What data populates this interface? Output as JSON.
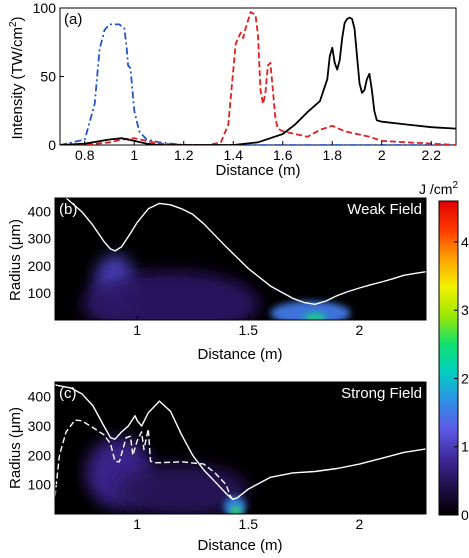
{
  "figure": {
    "colorbar": {
      "unit_label": "J /cm",
      "unit_sup": "2",
      "min": 0,
      "max": 4.6,
      "ticks": [
        "0",
        "1",
        "2",
        "3",
        "4"
      ],
      "tick_values": [
        0,
        1,
        2,
        3,
        4
      ],
      "colormap": [
        "#000000",
        "#20104a",
        "#3f2a9a",
        "#5c5ae6",
        "#2f8fe6",
        "#00cfc0",
        "#10e070",
        "#9ee800",
        "#f2f200",
        "#ffa000",
        "#ff3a00",
        "#e00000"
      ]
    }
  },
  "chart_data": [
    {
      "type": "line",
      "panel_label": "(a)",
      "xlabel": "Distance (m)",
      "ylabel": "Intensity (TW/cm",
      "ylabel_sup": "2",
      "ylabel_tail": ")",
      "xlim": [
        0.7,
        2.3
      ],
      "ylim": [
        0,
        100
      ],
      "x_ticks": [
        0.8,
        1,
        1.2,
        1.4,
        1.6,
        1.8,
        2,
        2.2
      ],
      "x_tick_labels": [
        "0.8",
        "1",
        "1.2",
        "1.4",
        "1.6",
        "1.8",
        "2",
        "2.2"
      ],
      "y_ticks": [
        0,
        50,
        100
      ],
      "y_tick_labels": [
        "0",
        "50",
        "100"
      ],
      "series": [
        {
          "color": "#2255cc",
          "style": "dashdot",
          "x": [
            0.7,
            0.8,
            0.84,
            0.86,
            0.88,
            0.9,
            0.94,
            0.96,
            0.97,
            0.975,
            0.985,
            0.99,
            1.0,
            1.02,
            1.05,
            1.1,
            1.15,
            1.2,
            1.3,
            2.3
          ],
          "y": [
            0,
            4,
            30,
            70,
            84,
            88,
            88,
            85,
            70,
            58,
            56,
            45,
            25,
            10,
            4,
            2,
            1,
            0,
            0,
            0
          ]
        },
        {
          "color": "#e02020",
          "style": "dashed",
          "x": [
            0.7,
            0.82,
            0.9,
            0.95,
            1.0,
            1.05,
            1.1,
            1.2,
            1.3,
            1.35,
            1.38,
            1.41,
            1.43,
            1.44,
            1.45,
            1.47,
            1.49,
            1.5,
            1.51,
            1.52,
            1.53,
            1.54,
            1.55,
            1.56,
            1.57,
            1.58,
            1.6,
            1.65,
            1.7,
            1.75,
            1.8,
            1.85,
            1.9,
            1.95,
            2.0,
            2.1,
            2.2,
            2.3
          ],
          "y": [
            0,
            0.5,
            2,
            4,
            5,
            3,
            1,
            0,
            0,
            2,
            15,
            74,
            82,
            78,
            85,
            97,
            95,
            80,
            40,
            30,
            38,
            58,
            60,
            40,
            20,
            12,
            10,
            8,
            6,
            11,
            14,
            10,
            8,
            6,
            3,
            2,
            1,
            0
          ]
        },
        {
          "color": "#000000",
          "style": "solid",
          "x": [
            0.7,
            0.8,
            0.9,
            0.95,
            1.0,
            1.05,
            1.1,
            1.2,
            1.4,
            1.5,
            1.6,
            1.65,
            1.7,
            1.75,
            1.78,
            1.79,
            1.8,
            1.81,
            1.82,
            1.83,
            1.84,
            1.85,
            1.86,
            1.87,
            1.88,
            1.89,
            1.9,
            1.91,
            1.92,
            1.93,
            1.94,
            1.95,
            1.96,
            1.97,
            1.98,
            2.0,
            2.1,
            2.2,
            2.3
          ],
          "y": [
            0,
            1,
            4,
            5,
            3,
            1,
            0,
            0,
            0,
            2,
            8,
            15,
            24,
            32,
            48,
            65,
            71,
            60,
            55,
            62,
            78,
            89,
            92,
            93,
            92,
            85,
            65,
            45,
            38,
            40,
            48,
            52,
            40,
            25,
            18,
            17,
            15,
            13,
            12
          ]
        }
      ]
    },
    {
      "type": "heatmap",
      "panel_label": "(b)",
      "annotation": "Weak Field",
      "xlabel": "Distance (m)",
      "ylabel": "Radius (μm)",
      "xlim": [
        0.63,
        2.3
      ],
      "ylim": [
        0,
        450
      ],
      "x_ticks": [
        1,
        1.5,
        2
      ],
      "x_tick_labels": [
        "1",
        "1.5",
        "2"
      ],
      "y_ticks": [
        100,
        200,
        300,
        400
      ],
      "y_tick_labels": [
        "100",
        "200",
        "300",
        "400"
      ],
      "blobs": [
        {
          "x": 0.9,
          "y": 130,
          "rx": 0.09,
          "ry": 110,
          "level": 1.1
        },
        {
          "x": 1.15,
          "y": 60,
          "rx": 0.4,
          "ry": 120,
          "level": 0.55
        },
        {
          "x": 1.78,
          "y": 25,
          "rx": 0.18,
          "ry": 45,
          "level": 1.5
        },
        {
          "x": 1.8,
          "y": 10,
          "rx": 0.05,
          "ry": 15,
          "level": 2.4
        }
      ],
      "lines": [
        {
          "color": "#ffffff",
          "style": "solid",
          "x": [
            0.63,
            0.68,
            0.75,
            0.8,
            0.85,
            0.88,
            0.9,
            0.93,
            0.97,
            1.0,
            1.05,
            1.1,
            1.15,
            1.2,
            1.25,
            1.3,
            1.4,
            1.5,
            1.6,
            1.7,
            1.75,
            1.8,
            1.85,
            1.9,
            1.95,
            2.0,
            2.05,
            2.1,
            2.15,
            2.2,
            2.25,
            2.3
          ],
          "y": [
            500,
            450,
            400,
            350,
            290,
            262,
            255,
            270,
            320,
            360,
            410,
            430,
            425,
            410,
            390,
            355,
            270,
            190,
            125,
            80,
            65,
            58,
            70,
            90,
            105,
            118,
            130,
            140,
            152,
            165,
            172,
            178
          ]
        }
      ]
    },
    {
      "type": "heatmap",
      "panel_label": "(c)",
      "annotation": "Strong Field",
      "xlabel": "Distance (m)",
      "ylabel": "Radius (μm)",
      "xlim": [
        0.63,
        2.3
      ],
      "ylim": [
        0,
        450
      ],
      "x_ticks": [
        1,
        1.5,
        2
      ],
      "x_tick_labels": [
        "1",
        "1.5",
        "2"
      ],
      "y_ticks": [
        100,
        200,
        300,
        400
      ],
      "y_tick_labels": [
        "100",
        "200",
        "300",
        "400"
      ],
      "blobs": [
        {
          "x": 0.92,
          "y": 140,
          "rx": 0.15,
          "ry": 120,
          "level": 0.8
        },
        {
          "x": 1.2,
          "y": 80,
          "rx": 0.3,
          "ry": 90,
          "level": 0.5
        },
        {
          "x": 1.44,
          "y": 25,
          "rx": 0.05,
          "ry": 35,
          "level": 1.6
        },
        {
          "x": 1.445,
          "y": 10,
          "rx": 0.025,
          "ry": 15,
          "level": 2.6
        }
      ],
      "lines": [
        {
          "color": "#ffffff",
          "style": "solid",
          "x": [
            0.63,
            0.7,
            0.75,
            0.8,
            0.85,
            0.88,
            0.9,
            0.93,
            0.96,
            0.99,
            1.0,
            1.02,
            1.05,
            1.1,
            1.15,
            1.2,
            1.25,
            1.3,
            1.35,
            1.4,
            1.43,
            1.45,
            1.5,
            1.6,
            1.7,
            1.8,
            1.9,
            2.0,
            2.1,
            2.2,
            2.3
          ],
          "y": [
            440,
            430,
            410,
            370,
            300,
            260,
            255,
            280,
            300,
            335,
            318,
            300,
            345,
            385,
            350,
            270,
            200,
            150,
            110,
            70,
            50,
            55,
            85,
            125,
            140,
            145,
            155,
            170,
            190,
            210,
            222
          ]
        },
        {
          "color": "#ffffff",
          "style": "dashed",
          "x": [
            0.63,
            0.65,
            0.68,
            0.72,
            0.75,
            0.8,
            0.85,
            0.88,
            0.9,
            0.92,
            0.95,
            0.97,
            0.98,
            1.0,
            1.02,
            1.03,
            1.05,
            1.06,
            1.08,
            1.1,
            1.2,
            1.3,
            1.35,
            1.4,
            1.42,
            1.44
          ],
          "y": [
            60,
            200,
            280,
            320,
            318,
            295,
            270,
            240,
            180,
            178,
            260,
            265,
            200,
            250,
            280,
            220,
            290,
            180,
            175,
            175,
            178,
            170,
            140,
            100,
            60,
            40
          ]
        }
      ]
    }
  ]
}
